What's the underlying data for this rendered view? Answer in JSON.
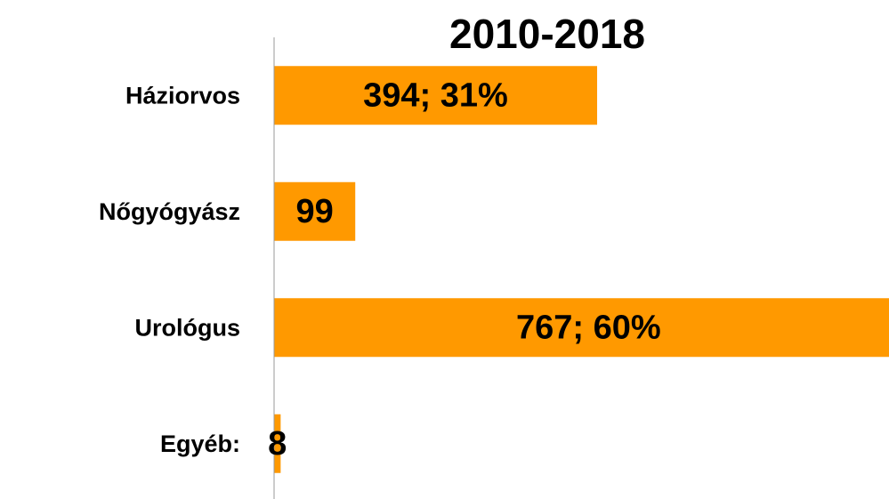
{
  "chart_data": {
    "type": "bar",
    "orientation": "horizontal",
    "title": "2010-2018",
    "categories": [
      "Háziorvos",
      "Nőgyógyász",
      "Urológus",
      "Egyéb:"
    ],
    "values": [
      394,
      99,
      767,
      8
    ],
    "value_labels": [
      "394; 31%",
      "99",
      "767; 60%",
      "8"
    ],
    "color": "#ff9900",
    "xlim": [
      0,
      750
    ]
  }
}
